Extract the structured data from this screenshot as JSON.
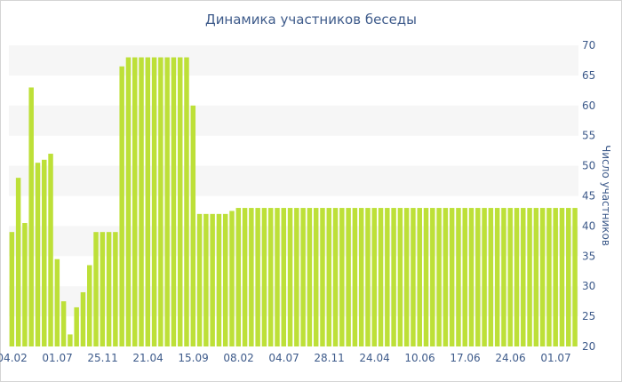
{
  "chart_data": {
    "type": "bar",
    "title": "Динамика участников беседы",
    "xlabel": "",
    "ylabel": "Число участников",
    "ylim": [
      20,
      70
    ],
    "y_ticks": [
      20,
      25,
      30,
      35,
      40,
      45,
      50,
      55,
      60,
      65,
      70
    ],
    "y_axis_position": "right",
    "grid": "horizontal alternating bands",
    "colors": {
      "bar": "#bde038",
      "band": "#f6f6f6",
      "axis_text": "#3d5a8a"
    },
    "x_ticks": [
      {
        "index": 0,
        "label": "04.02"
      },
      {
        "index": 7,
        "label": "01.07"
      },
      {
        "index": 14,
        "label": "25.11"
      },
      {
        "index": 21,
        "label": "21.04"
      },
      {
        "index": 28,
        "label": "15.09"
      },
      {
        "index": 35,
        "label": "08.02"
      },
      {
        "index": 42,
        "label": "04.07"
      },
      {
        "index": 49,
        "label": "28.11"
      },
      {
        "index": 56,
        "label": "24.04"
      },
      {
        "index": 63,
        "label": "10.06"
      },
      {
        "index": 70,
        "label": "17.06"
      },
      {
        "index": 77,
        "label": "24.06"
      },
      {
        "index": 84,
        "label": "01.07"
      }
    ],
    "values": [
      39,
      48,
      40.5,
      63,
      50.5,
      51,
      52,
      34.5,
      27.5,
      22,
      26.5,
      29,
      33.5,
      39,
      39,
      39,
      39,
      66.5,
      68,
      68,
      68,
      68,
      68,
      68,
      68,
      68,
      68,
      68,
      60,
      42,
      42,
      42,
      42,
      42,
      42.5,
      43,
      43,
      43,
      43,
      43,
      43,
      43,
      43,
      43,
      43,
      43,
      43,
      43,
      43,
      43,
      43,
      43,
      43,
      43,
      43,
      43,
      43,
      43,
      43,
      43,
      43,
      43,
      43,
      43,
      43,
      43,
      43,
      43,
      43,
      43,
      43,
      43,
      43,
      43,
      43,
      43,
      43,
      43,
      43,
      43,
      43,
      43,
      43,
      43,
      43,
      43,
      43,
      43
    ]
  }
}
